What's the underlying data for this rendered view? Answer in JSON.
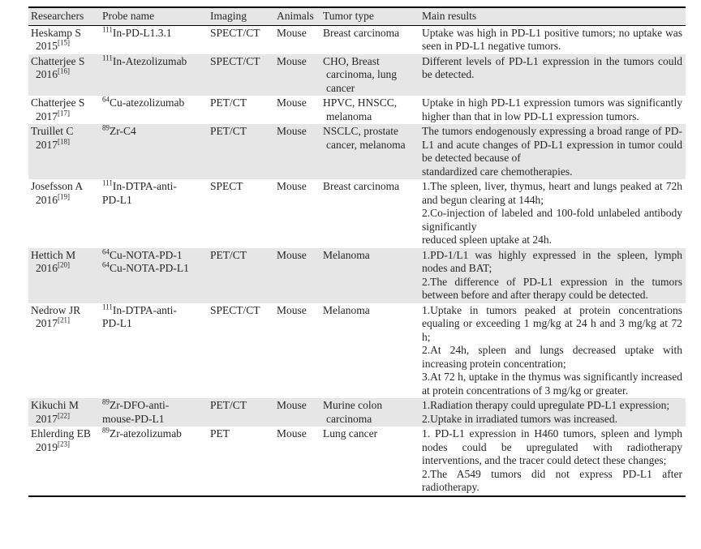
{
  "colors": {
    "row_shade": "#e6e6e6",
    "text": "#262626",
    "border": "#000000",
    "background": "#ffffff"
  },
  "table": {
    "columns": [
      "Researchers",
      "Probe name",
      "Imaging",
      "Animals",
      "Tumor type",
      "Main results"
    ],
    "rows": [
      {
        "researcher": "Heskamp S",
        "year": "2015",
        "ref": "[15]",
        "probes": [
          {
            "isotope": "111",
            "text": "In-PD-L1.3.1"
          }
        ],
        "imaging": "SPECT/CT",
        "animals": "Mouse",
        "tumor_type": "Breast carcinoma",
        "results": [
          "Uptake was high in PD-L1 positive tumors; no uptake was seen in PD-L1 negative tumors."
        ],
        "shaded": false
      },
      {
        "researcher": "Chatterjee S",
        "year": "2016",
        "ref": "[16]",
        "probes": [
          {
            "isotope": "111",
            "text": "In-Atezolizumab"
          }
        ],
        "imaging": "SPECT/CT",
        "animals": "Mouse",
        "tumor_type": "CHO, Breast carcinoma, lung cancer",
        "results": [
          "Different levels of PD-L1 expression in the tumors could be detected."
        ],
        "shaded": true
      },
      {
        "researcher": "Chatterjee S",
        "year": "2017",
        "ref": "[17]",
        "probes": [
          {
            "isotope": "64",
            "text": "Cu-atezolizumab"
          }
        ],
        "imaging": "PET/CT",
        "animals": "Mouse",
        "tumor_type": "HPVC, HNSCC, melanoma",
        "results": [
          "Uptake in high PD-L1 expression tumors was significantly higher than that in low PD-L1 expression tumors."
        ],
        "shaded": false
      },
      {
        "researcher": "Truillet C",
        "year": "2017",
        "ref": "[18]",
        "probes": [
          {
            "isotope": "89",
            "text": "Zr-C4"
          }
        ],
        "imaging": "PET/CT",
        "animals": "Mouse",
        "tumor_type": "NSCLC, prostate cancer, melanoma",
        "results": [
          "The tumors endogenously expressing a broad range of PD-L1 and acute changes of PD-L1 expression in tumor could be detected because of",
          "standardized care chemotherapies."
        ],
        "shaded": true
      },
      {
        "researcher": "Josefsson A",
        "year": "2016",
        "ref": "[19]",
        "probes": [
          {
            "isotope": "111",
            "text": "In-DTPA-anti-"
          },
          {
            "text": "PD-L1"
          }
        ],
        "imaging": "SPECT",
        "animals": "Mouse",
        "tumor_type": "Breast carcinoma",
        "results": [
          "1.The spleen, liver, thymus, heart and lungs peaked at 72h and begun clearing at 144h;",
          "2.Co-injection of labeled and 100-fold unlabeled antibody significantly",
          "reduced spleen uptake at 24h."
        ],
        "shaded": false
      },
      {
        "researcher": "Hettich M",
        "year": "2016",
        "ref": "[20]",
        "probes": [
          {
            "isotope": "64",
            "text": "Cu-NOTA-PD-1"
          },
          {
            "isotope": "64",
            "text": "Cu-NOTA-PD-L1"
          }
        ],
        "imaging": "PET/CT",
        "animals": "Mouse",
        "tumor_type": "Melanoma",
        "results": [
          "1.PD-1/L1 was highly expressed in the spleen, lymph nodes and BAT;",
          "2.The difference of PD-L1 expression in the tumors between before and after therapy could be detected."
        ],
        "shaded": true
      },
      {
        "researcher": "Nedrow JR",
        "year": "2017",
        "ref": "[21]",
        "probes": [
          {
            "isotope": "111",
            "text": "In-DTPA-anti-"
          },
          {
            "text": "PD-L1"
          }
        ],
        "imaging": "SPECT/CT",
        "animals": "Mouse",
        "tumor_type": "Melanoma",
        "results": [
          "1.Uptake in tumors peaked at protein concentrations equaling or exceeding 1 mg/kg at 24 h and 3 mg/kg at 72 h;",
          "2.At 24h, spleen and lungs decreased uptake with increasing protein concentration;",
          "3.At 72 h, uptake in the thymus was significantly increased at protein concentrations of 3 mg/kg or greater."
        ],
        "shaded": false
      },
      {
        "researcher": "Kikuchi M",
        "year": "2017",
        "ref": "[22]",
        "probes": [
          {
            "isotope": "89",
            "text": "Zr-DFO-anti-"
          },
          {
            "text": "mouse-PD-L1"
          }
        ],
        "imaging": "PET/CT",
        "animals": "Mouse",
        "tumor_type": "Murine colon carcinoma",
        "results": [
          "1.Radiation therapy could upregulate PD-L1 expression;",
          "2.Uptake in irradiated tumors was increased."
        ],
        "shaded": true
      },
      {
        "researcher": "Ehlerding EB",
        "year": "2019",
        "ref": "[23]",
        "probes": [
          {
            "isotope": "89",
            "text": "Zr-atezolizumab"
          }
        ],
        "imaging": "PET",
        "animals": "Mouse",
        "tumor_type": "Lung cancer",
        "results": [
          "1. PD-L1 expression in H460 tumors, spleen and lymph nodes could be upregulated with radiotherapy interventions, and the tracer could detect these changes;",
          "2.The A549 tumors did not express PD-L1 after radiotherapy."
        ],
        "shaded": false
      }
    ]
  }
}
